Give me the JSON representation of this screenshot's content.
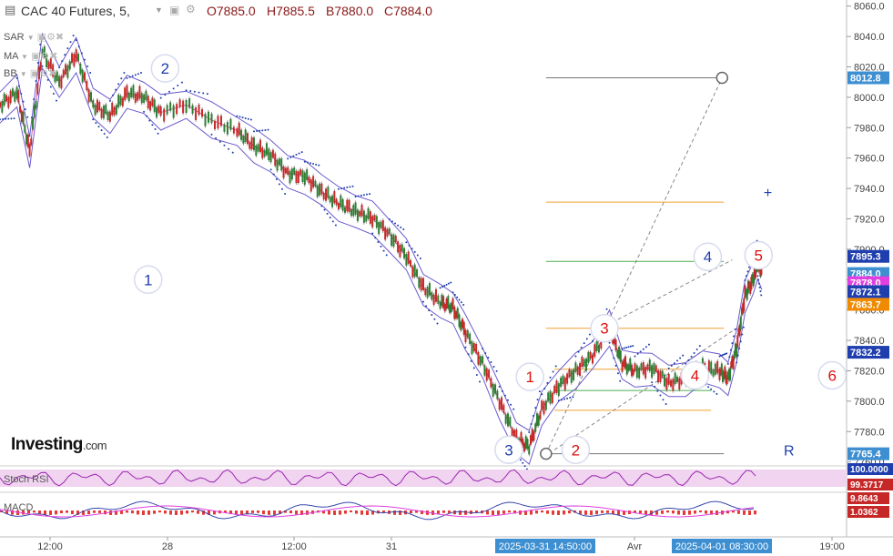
{
  "header": {
    "symbol_title": "CAC 40 Futures, 5,",
    "ohlc": [
      "O7885.0",
      "H7885.5",
      "B7880.0",
      "C7884.0"
    ]
  },
  "indicators": [
    "SAR",
    "MA",
    "BB"
  ],
  "logo": {
    "main": "Investing",
    "suffix": ".com"
  },
  "chart_data": {
    "type": "line",
    "price_axis_ticks": [
      8060,
      8040,
      8020,
      8000,
      7980,
      7960,
      7940,
      7920,
      7900,
      7880,
      7860,
      7840,
      7820,
      7800,
      7780,
      7760
    ],
    "ylim": [
      7758,
      8064
    ],
    "time_axis_labels": [
      "12:00",
      "28",
      "12:00",
      "31",
      "Avr",
      "19:00"
    ],
    "time_axis_highlights": [
      "2025-03-31 14:50:00",
      "2025-04-01 08:30:00"
    ],
    "price_labels": [
      {
        "text": "8012.8",
        "value": 8012.8,
        "color": "#3d8fd1"
      },
      {
        "text": "7895.3",
        "value": 7895.3,
        "color": "#1f3fae"
      },
      {
        "text": "7884.0",
        "value": 7884.0,
        "color": "#3d8fd1"
      },
      {
        "text": "7878.0",
        "value": 7878.0,
        "color": "#e040e0"
      },
      {
        "text": "7872.1",
        "value": 7872.1,
        "color": "#1f3fae"
      },
      {
        "text": "7863.7",
        "value": 7863.7,
        "color": "#f08a00"
      },
      {
        "text": "7832.2",
        "value": 7832.2,
        "color": "#1f3fae"
      },
      {
        "text": "7765.4",
        "value": 7765.4,
        "color": "#3d8fd1"
      }
    ],
    "price_path": [
      [
        0,
        7995
      ],
      [
        0.02,
        8003
      ],
      [
        0.035,
        7965
      ],
      [
        0.05,
        8030
      ],
      [
        0.07,
        8010
      ],
      [
        0.09,
        8028
      ],
      [
        0.11,
        7995
      ],
      [
        0.13,
        7988
      ],
      [
        0.15,
        8003
      ],
      [
        0.17,
        8000
      ],
      [
        0.19,
        7990
      ],
      [
        0.22,
        7995
      ],
      [
        0.25,
        7985
      ],
      [
        0.28,
        7978
      ],
      [
        0.3,
        7968
      ],
      [
        0.32,
        7962
      ],
      [
        0.34,
        7950
      ],
      [
        0.36,
        7948
      ],
      [
        0.38,
        7938
      ],
      [
        0.4,
        7930
      ],
      [
        0.42,
        7925
      ],
      [
        0.44,
        7920
      ],
      [
        0.46,
        7910
      ],
      [
        0.48,
        7895
      ],
      [
        0.5,
        7875
      ],
      [
        0.52,
        7865
      ],
      [
        0.535,
        7862
      ],
      [
        0.55,
        7845
      ],
      [
        0.57,
        7825
      ],
      [
        0.59,
        7800
      ],
      [
        0.61,
        7775
      ],
      [
        0.625,
        7770
      ],
      [
        0.64,
        7795
      ],
      [
        0.66,
        7810
      ],
      [
        0.68,
        7820
      ],
      [
        0.7,
        7830
      ],
      [
        0.72,
        7848
      ],
      [
        0.735,
        7825
      ],
      [
        0.75,
        7820
      ],
      [
        0.77,
        7822
      ],
      [
        0.79,
        7812
      ],
      [
        0.81,
        7815
      ],
      [
        0.83,
        7822
      ],
      [
        0.85,
        7820
      ],
      [
        0.86,
        7815
      ],
      [
        0.87,
        7835
      ],
      [
        0.88,
        7870
      ],
      [
        0.89,
        7880
      ],
      [
        0.895,
        7892
      ],
      [
        0.9,
        7884
      ]
    ],
    "hlines": [
      {
        "value": 8012.8,
        "x0": 0.645,
        "x1": 0.855,
        "color": "#777777"
      },
      {
        "value": 7931,
        "x0": 0.645,
        "x1": 0.855,
        "color": "#f0a030"
      },
      {
        "value": 7892,
        "x0": 0.645,
        "x1": 0.855,
        "color": "#4caf50"
      },
      {
        "value": 7848,
        "x0": 0.645,
        "x1": 0.855,
        "color": "#f0a030"
      },
      {
        "value": 7821,
        "x0": 0.655,
        "x1": 0.84,
        "color": "#f0a030"
      },
      {
        "value": 7807,
        "x0": 0.655,
        "x1": 0.84,
        "color": "#4caf50"
      },
      {
        "value": 7794,
        "x0": 0.655,
        "x1": 0.84,
        "color": "#f0a030"
      },
      {
        "value": 7765.4,
        "x0": 0.645,
        "x1": 0.855,
        "color": "#777777"
      }
    ],
    "wave_labels": [
      {
        "text": "1",
        "x": 0.175,
        "y": 7880,
        "color": "#1f3fae"
      },
      {
        "text": "2",
        "x": 0.195,
        "y": 8019,
        "color": "#1f3fae"
      },
      {
        "text": "3",
        "x": 0.601,
        "y": 7768,
        "color": "#1f3fae"
      },
      {
        "text": "4",
        "x": 0.836,
        "y": 7895,
        "color": "#1f3fae"
      },
      {
        "text": "1",
        "x": 0.626,
        "y": 7816,
        "color": "#dd1111"
      },
      {
        "text": "2",
        "x": 0.68,
        "y": 7768,
        "color": "#dd1111"
      },
      {
        "text": "3",
        "x": 0.714,
        "y": 7848,
        "color": "#dd1111"
      },
      {
        "text": "4",
        "x": 0.821,
        "y": 7817,
        "color": "#dd1111"
      },
      {
        "text": "5",
        "x": 0.896,
        "y": 7896,
        "color": "#dd1111"
      },
      {
        "text": "6",
        "x": 0.983,
        "y": 7817,
        "color": "#dd1111"
      }
    ],
    "r_label": "R",
    "stoch_rsi": {
      "label": "Stoch RSI",
      "values": [
        "100.0000",
        "99.3717"
      ]
    },
    "macd": {
      "label": "MACD",
      "values": [
        "9.8643",
        "1.0362"
      ]
    }
  }
}
